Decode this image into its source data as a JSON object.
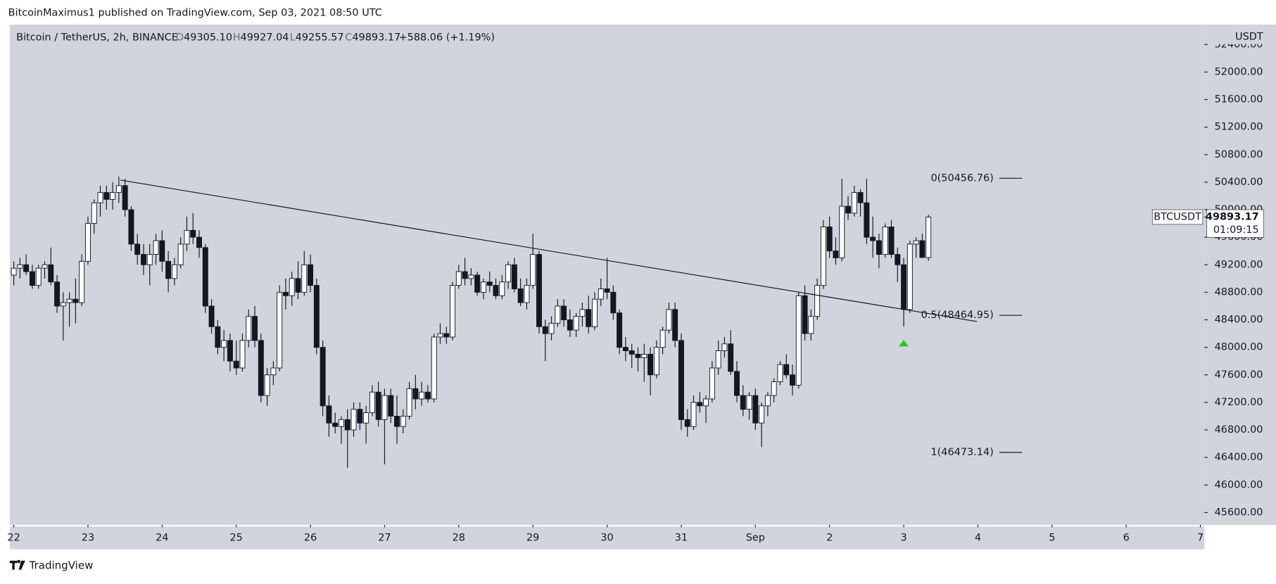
{
  "header": {
    "publisher": "BitcoinMaximus1 published on TradingView.com, Sep 03, 2021 08:50 UTC"
  },
  "legend": {
    "symbol": "Bitcoin / TetherUS, 2h, BINANCE",
    "ohlc": [
      {
        "key": "O",
        "value": "49305.10"
      },
      {
        "key": "H",
        "value": "49927.04"
      },
      {
        "key": "L",
        "value": "49255.57"
      },
      {
        "key": "C",
        "value": "49893.17"
      }
    ],
    "change": "+588.06 (+1.19%)"
  },
  "chart_data": {
    "type": "candlestick",
    "x": [
      0,
      2,
      4,
      6,
      8,
      10,
      12,
      14,
      16,
      18,
      20,
      22,
      24,
      26,
      28,
      30,
      32,
      34,
      36,
      38,
      40,
      42,
      44,
      46,
      48,
      50,
      52,
      54,
      56,
      58,
      60,
      62,
      64,
      66,
      68,
      70,
      72,
      74,
      76,
      78,
      80,
      82,
      84,
      86,
      88,
      90,
      92,
      94,
      96,
      98,
      100,
      102,
      104,
      106,
      108,
      110,
      112,
      114,
      116,
      118,
      120,
      122,
      124,
      126,
      128,
      130,
      132,
      134,
      136,
      138,
      140,
      142,
      144,
      146,
      148,
      150,
      152,
      154,
      156,
      158,
      160,
      162,
      164,
      166,
      168,
      170,
      172,
      174,
      176,
      178,
      180,
      182,
      184,
      186,
      188,
      190,
      192,
      194,
      196,
      198,
      200,
      202,
      204,
      206,
      208,
      210,
      212,
      214,
      216,
      218,
      220,
      222,
      224,
      226,
      228,
      230,
      232,
      234,
      236,
      238,
      240,
      242,
      244,
      246,
      248,
      250,
      252,
      254,
      256,
      258,
      260,
      262,
      264,
      266,
      268,
      270,
      272,
      274,
      276,
      278,
      280,
      282,
      284,
      286,
      288,
      290,
      292,
      294,
      296
    ],
    "open": [
      49050,
      49150,
      49200,
      49100,
      48900,
      49150,
      49200,
      48950,
      48600,
      48650,
      48700,
      48650,
      49250,
      49800,
      50100,
      50250,
      50150,
      50250,
      50350,
      50000,
      49500,
      49350,
      49200,
      49350,
      49550,
      49250,
      49000,
      49200,
      49500,
      49700,
      49600,
      49450,
      48600,
      48300,
      48000,
      48100,
      47800,
      47700,
      48100,
      48450,
      48100,
      47300,
      47600,
      47700,
      48800,
      48750,
      49000,
      48800,
      49200,
      48900,
      48000,
      47150,
      46900,
      46850,
      46950,
      46800,
      47100,
      46900,
      47050,
      47350,
      46950,
      47300,
      47000,
      46850,
      47000,
      47400,
      47250,
      47350,
      47250,
      48150,
      48200,
      48150,
      48900,
      49100,
      49000,
      49050,
      48800,
      48950,
      48900,
      48750,
      48950,
      49200,
      48850,
      48650,
      48900,
      49350,
      48300,
      48200,
      48350,
      48600,
      48400,
      48250,
      48450,
      48550,
      48300,
      48700,
      48850,
      48800,
      48500,
      48000,
      47950,
      47900,
      47850,
      47900,
      47600,
      48000,
      48250,
      48550,
      48100,
      46950,
      46850,
      47200,
      47150,
      47250,
      47700,
      47950,
      48050,
      47650,
      47300,
      47100,
      47300,
      46900,
      47150,
      47300,
      47500,
      47750,
      47600,
      47450,
      48750,
      48200,
      48450,
      48900,
      49750,
      49400,
      49300,
      50050,
      49950,
      50250,
      50100,
      49600,
      49550,
      49350,
      49750,
      49350,
      49200,
      48550,
      49500,
      49550,
      49305.1
    ],
    "high": [
      49250,
      49300,
      49350,
      49200,
      49200,
      49250,
      49450,
      49050,
      48800,
      48800,
      49000,
      49350,
      49900,
      50150,
      50350,
      50350,
      50400,
      50480,
      50450,
      50050,
      49650,
      49500,
      49500,
      49650,
      49700,
      49400,
      49300,
      49600,
      49900,
      49950,
      49700,
      49500,
      48700,
      48400,
      48250,
      48200,
      48100,
      48200,
      48550,
      48600,
      48200,
      47700,
      47800,
      48900,
      49000,
      49100,
      49250,
      49400,
      49350,
      49000,
      48100,
      47300,
      47050,
      47000,
      47100,
      47200,
      47200,
      47150,
      47450,
      47500,
      47400,
      47400,
      47300,
      47100,
      47500,
      47600,
      47500,
      47450,
      48200,
      48350,
      48300,
      48950,
      49200,
      49300,
      49150,
      49100,
      49000,
      49100,
      49000,
      49050,
      49250,
      49300,
      49000,
      49000,
      49650,
      49400,
      48400,
      48450,
      48700,
      48700,
      48550,
      48500,
      48650,
      48750,
      48800,
      49000,
      49300,
      48900,
      48550,
      48150,
      48050,
      48000,
      48050,
      48000,
      48100,
      48300,
      48650,
      48650,
      48200,
      47100,
      47300,
      47350,
      47300,
      47800,
      48100,
      48150,
      48250,
      47800,
      47450,
      47350,
      47400,
      47200,
      47350,
      47550,
      47800,
      47900,
      47750,
      48800,
      48900,
      48550,
      49000,
      49850,
      49900,
      49600,
      50450,
      50200,
      50350,
      50300,
      50450,
      49900,
      49650,
      49800,
      49850,
      49450,
      49300,
      49550,
      49600,
      49650,
      49927.04
    ],
    "low": [
      48900,
      49000,
      49050,
      48850,
      48850,
      49000,
      48900,
      48500,
      48100,
      48300,
      48350,
      48600,
      49200,
      49650,
      49900,
      50000,
      50000,
      50100,
      49900,
      49400,
      49200,
      49050,
      48900,
      49200,
      49100,
      48800,
      48900,
      49150,
      49400,
      49500,
      49300,
      48500,
      48200,
      47900,
      47800,
      47650,
      47600,
      47650,
      48000,
      48000,
      47200,
      47150,
      47450,
      47650,
      48550,
      48600,
      48700,
      48750,
      48800,
      47900,
      47000,
      46700,
      46750,
      46600,
      46250,
      46700,
      46800,
      46600,
      47000,
      46850,
      46300,
      46900,
      46600,
      46750,
      46950,
      47100,
      47150,
      47200,
      47200,
      48050,
      48050,
      48100,
      48850,
      48900,
      48900,
      48750,
      48700,
      48800,
      48700,
      48700,
      48850,
      48800,
      48600,
      48550,
      48850,
      48200,
      47800,
      48100,
      48300,
      48300,
      48150,
      48150,
      48300,
      48200,
      48250,
      48600,
      48700,
      48400,
      47900,
      47800,
      47700,
      47650,
      47500,
      47300,
      47550,
      47900,
      48200,
      48000,
      46800,
      46700,
      46800,
      47050,
      46900,
      47200,
      47600,
      47850,
      47600,
      47200,
      47000,
      46950,
      46800,
      46550,
      47000,
      47200,
      47450,
      47550,
      47300,
      47400,
      48100,
      48100,
      48400,
      48850,
      49300,
      49200,
      49250,
      49850,
      49900,
      49900,
      49500,
      49300,
      49150,
      49300,
      49300,
      48950,
      48300,
      48500,
      49300,
      49300,
      49255.57
    ],
    "close": [
      49150,
      49200,
      49100,
      48900,
      49150,
      49200,
      48950,
      48600,
      48650,
      48700,
      48650,
      49250,
      49800,
      50100,
      50250,
      50150,
      50250,
      50350,
      50000,
      49500,
      49350,
      49200,
      49350,
      49550,
      49250,
      49000,
      49200,
      49500,
      49700,
      49600,
      49450,
      48600,
      48300,
      48000,
      48100,
      47800,
      47700,
      48100,
      48450,
      48100,
      47300,
      47600,
      47700,
      48800,
      48750,
      49000,
      48800,
      49200,
      48900,
      48000,
      47150,
      46900,
      46850,
      46950,
      46800,
      47100,
      46900,
      47050,
      47350,
      46950,
      47300,
      47000,
      46850,
      47000,
      47400,
      47250,
      47350,
      47250,
      48150,
      48200,
      48150,
      48900,
      49100,
      49000,
      49050,
      48800,
      48950,
      48900,
      48750,
      48950,
      49200,
      48850,
      48650,
      48900,
      49350,
      48300,
      48200,
      48350,
      48600,
      48400,
      48250,
      48450,
      48550,
      48300,
      48700,
      48850,
      48800,
      48500,
      48000,
      47950,
      47900,
      47850,
      47900,
      47600,
      48000,
      48250,
      48550,
      48100,
      46950,
      46850,
      47200,
      47150,
      47250,
      47700,
      47950,
      48050,
      47650,
      47300,
      47100,
      47300,
      46900,
      47150,
      47300,
      47500,
      47750,
      47600,
      47450,
      48750,
      48200,
      48450,
      48900,
      49750,
      49400,
      49300,
      50050,
      49950,
      50250,
      50100,
      49600,
      49550,
      49350,
      49750,
      49350,
      49200,
      48550,
      49500,
      49550,
      49305.1,
      49893.17
    ],
    "up_color": "#ffffff",
    "down_color": "#131722",
    "wick_color": "#131722",
    "background": "#d1d4dc",
    "xlim": [
      -1.3,
      385.3
    ],
    "xticks": [
      {
        "value": 0,
        "label": "22"
      },
      {
        "value": 24,
        "label": "23"
      },
      {
        "value": 48,
        "label": "24"
      },
      {
        "value": 72,
        "label": "25"
      },
      {
        "value": 96,
        "label": "26"
      },
      {
        "value": 120,
        "label": "27"
      },
      {
        "value": 144,
        "label": "28"
      },
      {
        "value": 168,
        "label": "29"
      },
      {
        "value": 192,
        "label": "30"
      },
      {
        "value": 216,
        "label": "31"
      },
      {
        "value": 240,
        "label": "Sep"
      },
      {
        "value": 264,
        "label": "2"
      },
      {
        "value": 288,
        "label": "3"
      },
      {
        "value": 312,
        "label": "4"
      },
      {
        "value": 336,
        "label": "5"
      },
      {
        "value": 360,
        "label": "6"
      },
      {
        "value": 384,
        "label": "7"
      }
    ],
    "ylim": [
      45420,
      52690
    ],
    "yticks": [
      {
        "value": 45600,
        "label": "45600.00"
      },
      {
        "value": 46000,
        "label": "46000.00"
      },
      {
        "value": 46400,
        "label": "46400.00"
      },
      {
        "value": 46800,
        "label": "46800.00"
      },
      {
        "value": 47200,
        "label": "47200.00"
      },
      {
        "value": 47600,
        "label": "47600.00"
      },
      {
        "value": 48000,
        "label": "48000.00"
      },
      {
        "value": 48400,
        "label": "48400.00"
      },
      {
        "value": 48800,
        "label": "48800.00"
      },
      {
        "value": 49200,
        "label": "49200.00"
      },
      {
        "value": 49600,
        "label": "49600.00"
      },
      {
        "value": 50000,
        "label": "50000.00"
      },
      {
        "value": 50400,
        "label": "50400.00"
      },
      {
        "value": 50800,
        "label": "50800.00"
      },
      {
        "value": 51200,
        "label": "51200.00"
      },
      {
        "value": 51600,
        "label": "51600.00"
      },
      {
        "value": 52000,
        "label": "52000.00"
      },
      {
        "value": 52400,
        "label": "52400.00"
      }
    ],
    "y_axis_label": "USDT",
    "fib_levels": [
      {
        "value": 50456.76,
        "label": "0(50456.76)"
      },
      {
        "value": 48464.95,
        "label": "0.5(48464.95)"
      },
      {
        "value": 46473.14,
        "label": "1(46473.14)"
      }
    ],
    "trendline": {
      "x": [
        34.5,
        311.7
      ],
      "y": [
        50430,
        48375
      ]
    },
    "marker": {
      "x": 288,
      "y": 48060,
      "color": "#22c722"
    },
    "last_price": {
      "symbol": "BTCUSDT",
      "value": "49893.17",
      "countdown": "01:09:15"
    }
  },
  "footer": {
    "brand": "TradingView"
  }
}
